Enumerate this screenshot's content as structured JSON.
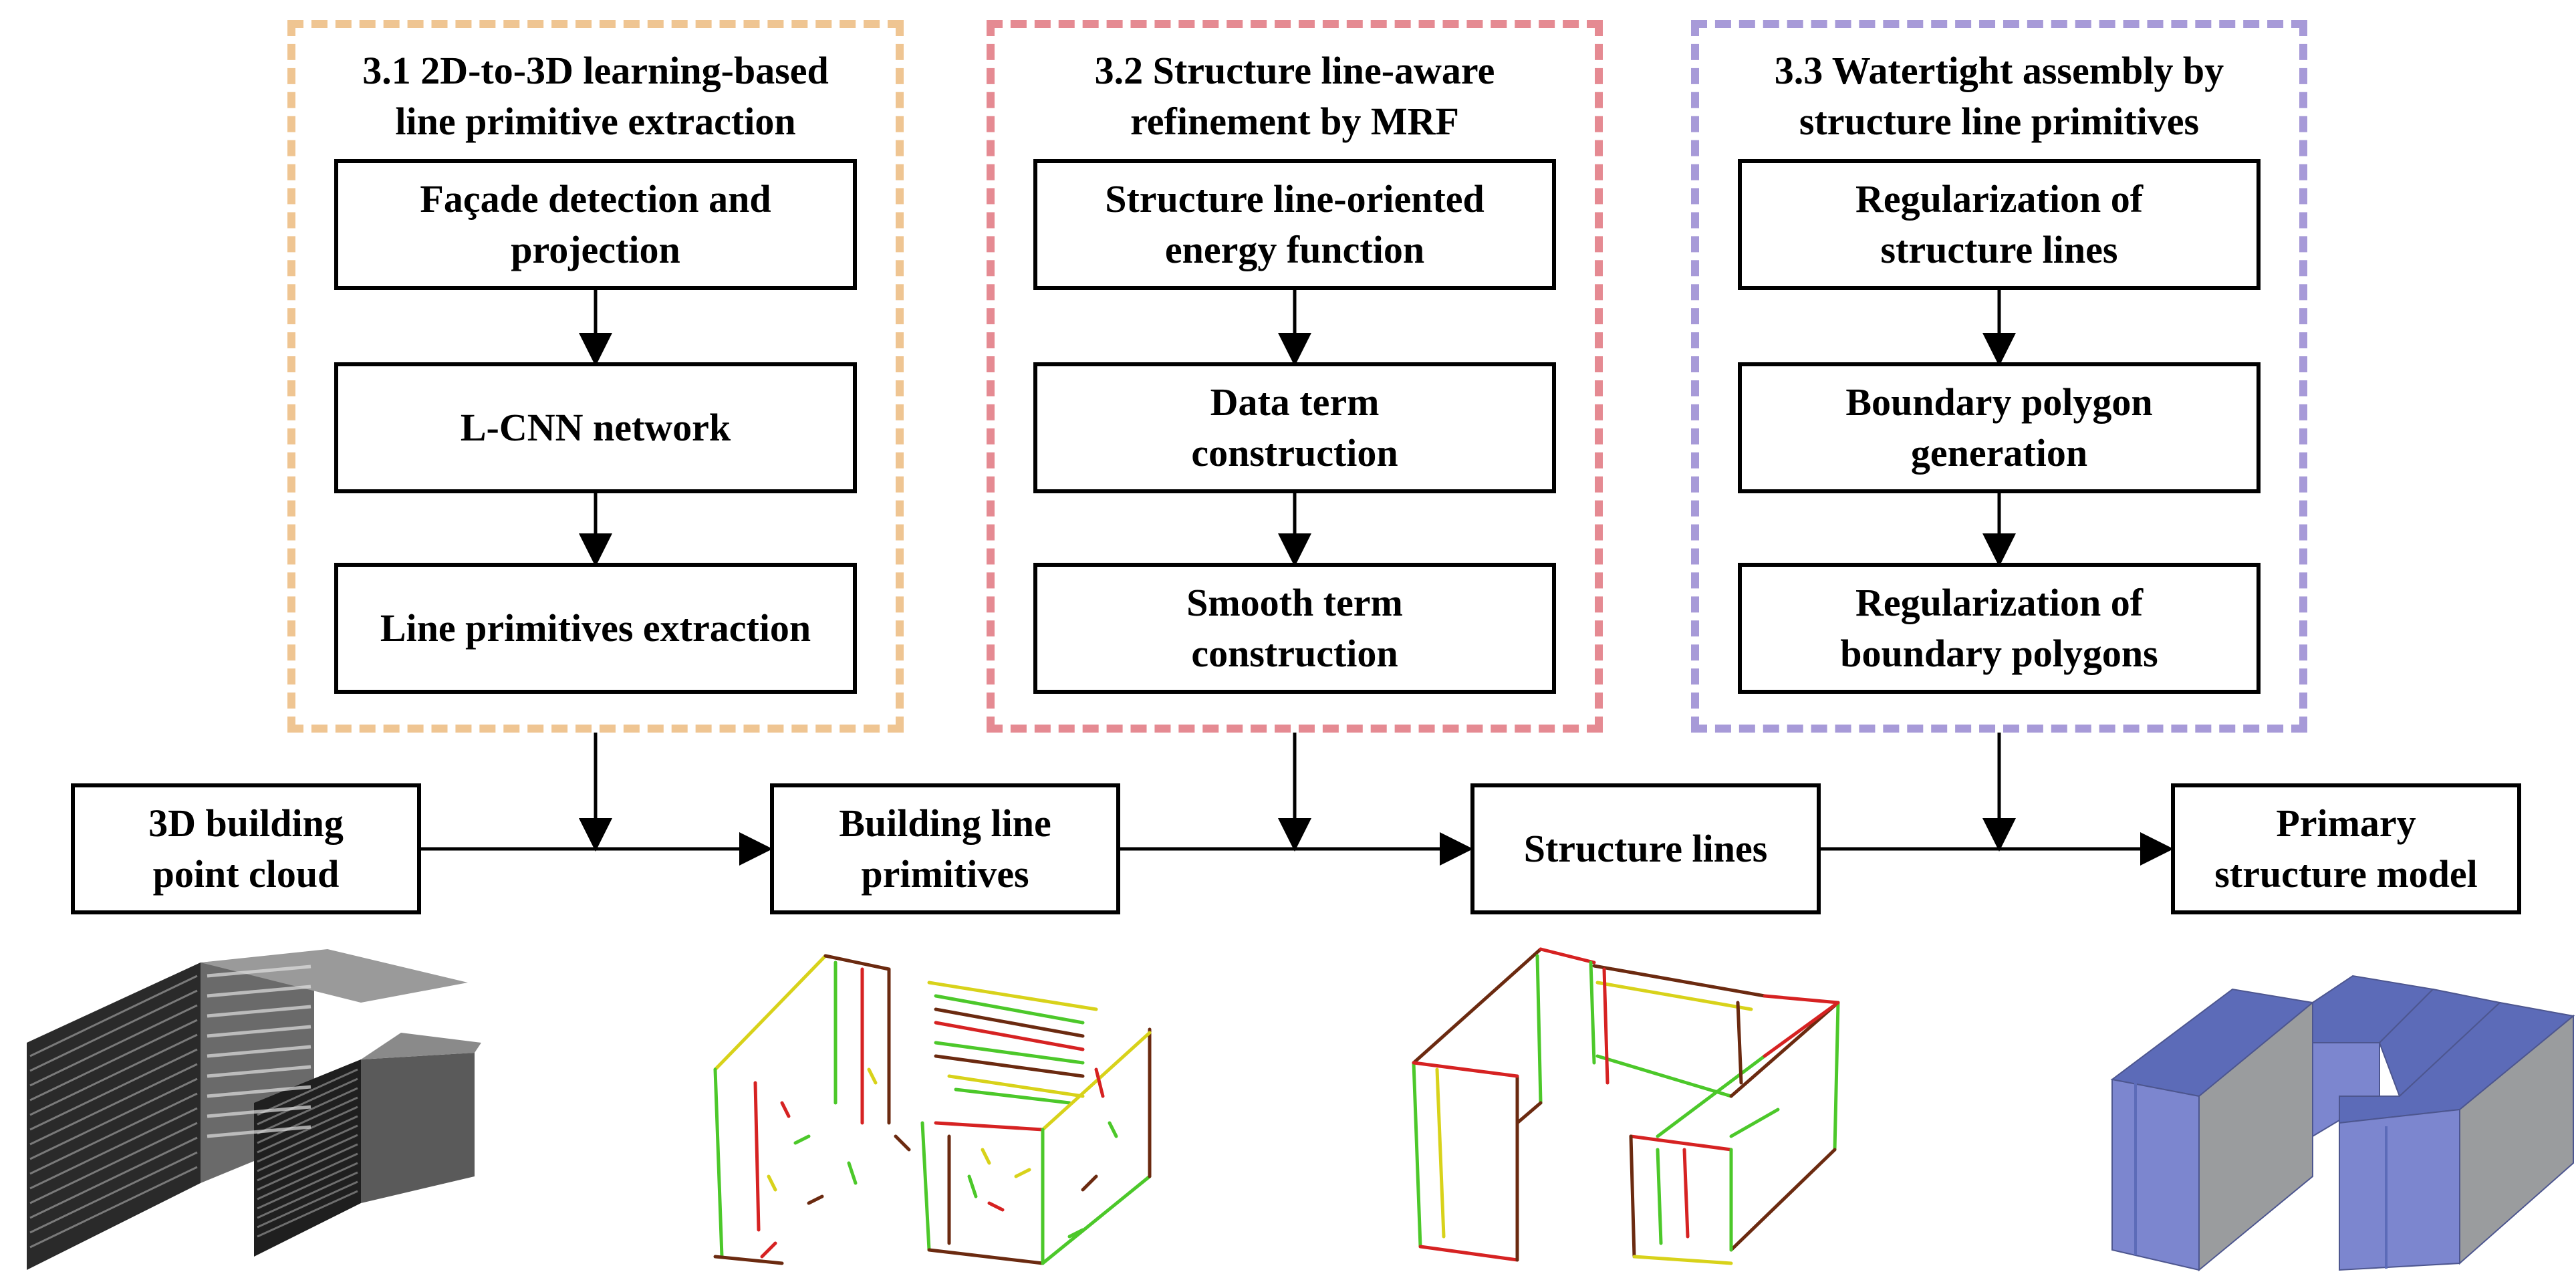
{
  "groups": [
    {
      "title": "3.1 2D-to-3D learning-based\nline primitive extraction",
      "color": "#efc592",
      "steps": [
        "Façade detection and\nprojection",
        "L-CNN network",
        "Line primitives extraction"
      ]
    },
    {
      "title": "3.2 Structure line-aware\nrefinement by MRF",
      "color": "#e58a92",
      "steps": [
        "Structure line-oriented\nenergy function",
        "Data term\nconstruction",
        "Smooth term\nconstruction"
      ]
    },
    {
      "title": "3.3 Watertight assembly by\nstructure line primitives",
      "color": "#a79ad8",
      "steps": [
        "Regularization of\nstructure lines",
        "Boundary polygon\ngeneration",
        "Regularization of\nboundary polygons"
      ]
    }
  ],
  "pipeline": [
    {
      "label": "3D building\npoint cloud"
    },
    {
      "label": "Building line\nprimitives"
    },
    {
      "label": "Structure lines"
    },
    {
      "label": "Primary\nstructure model"
    }
  ],
  "images": [
    {
      "name": "point-cloud-image",
      "kind": "point cloud rendering"
    },
    {
      "name": "line-primitives-image",
      "kind": "colored line primitives"
    },
    {
      "name": "structure-lines-image",
      "kind": "colored structure lines"
    },
    {
      "name": "structure-model-image",
      "kind": "blue-gray 3D block model"
    }
  ],
  "colors": {
    "line_red": "#d62222",
    "line_green": "#4cc82a",
    "line_dark": "#6b2a10",
    "line_yellow": "#d8d21a",
    "model_face": "#7c86cf",
    "model_top": "#5c6bb8",
    "model_side": "#9a9c9e"
  }
}
